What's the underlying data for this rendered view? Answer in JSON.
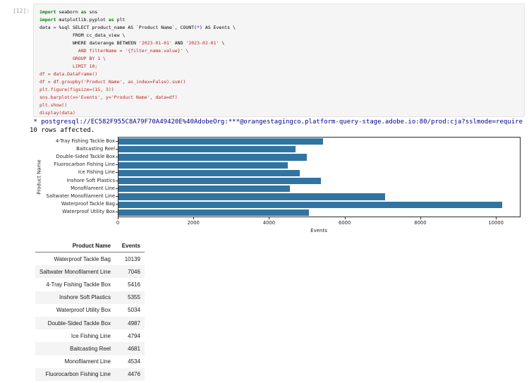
{
  "notebook": {
    "execution_count": "[12]:",
    "code_lines": [
      [
        {
          "t": "import",
          "c": "kw"
        },
        {
          "t": " seaborn ",
          "c": "pl"
        },
        {
          "t": "as",
          "c": "kw"
        },
        {
          "t": " sns",
          "c": "pl"
        }
      ],
      [
        {
          "t": "import",
          "c": "kw"
        },
        {
          "t": " matplotlib.pyplot ",
          "c": "pl"
        },
        {
          "t": "as",
          "c": "kw"
        },
        {
          "t": " plt",
          "c": "pl"
        }
      ],
      [
        {
          "t": "data ",
          "c": "pl"
        },
        {
          "t": "=",
          "c": "op"
        },
        {
          "t": " %sql SELECT product_name AS `Product Name`, COUNT(",
          "c": "pl"
        },
        {
          "t": "*",
          "c": "op"
        },
        {
          "t": ") AS Events \\",
          "c": "pl"
        }
      ],
      [
        {
          "t": "            FROM cc_data_view \\",
          "c": "pl"
        }
      ],
      [
        {
          "t": "            WHERE daterange BETWEEN ",
          "c": "pl"
        },
        {
          "t": "'2023-01-01'",
          "c": "str"
        },
        {
          "t": " AND ",
          "c": "pl"
        },
        {
          "t": "'2023-02-01'",
          "c": "str"
        },
        {
          "t": " \\",
          "c": "pl"
        }
      ],
      [
        {
          "t": "              AND filterName = '{filter_name.value}' \\",
          "c": "str"
        }
      ],
      [
        {
          "t": "            ",
          "c": "pl"
        },
        {
          "t": "GROUP BY 1 \\",
          "c": "str"
        }
      ],
      [
        {
          "t": "            ",
          "c": "pl"
        },
        {
          "t": "LIMIT 10;",
          "c": "str"
        }
      ],
      [
        {
          "t": "df = data.DataFrame()",
          "c": "str"
        }
      ],
      [
        {
          "t": "df = df.groupby('Product Name', as_index=False).sum()",
          "c": "str"
        }
      ],
      [
        {
          "t": "plt.figure(figsize=(15, 3))",
          "c": "str"
        }
      ],
      [
        {
          "t": "sns.barplot(x='Events', y='Product Name', data=df)",
          "c": "str"
        }
      ],
      [
        {
          "t": "plt.show()",
          "c": "str"
        }
      ],
      [
        {
          "t": "display(data)",
          "c": "str"
        }
      ]
    ],
    "outputs": {
      "connection": " * postgresql://EC582F955C8A79F70A49420E%40AdobeOrg:***@orangestagingco.platform-query-stage.adobe.io:80/prod:cja?sslmode=require",
      "rows_affected": "10 rows affected."
    }
  },
  "chart_data": {
    "type": "bar",
    "orientation": "horizontal",
    "title": "",
    "xlabel": "Events",
    "ylabel": "Product Name",
    "categories": [
      "4-Tray Fishing Tackle Box",
      "Baitcasting Reel",
      "Double-Sided Tackle Box",
      "Fluorocarbon Fishing Line",
      "Ice Fishing Line",
      "Inshore Soft Plastics",
      "Monofilament Line",
      "Saltwater Monofilament Line",
      "Waterproof Tackle Bag",
      "Waterproof Utility Box"
    ],
    "values": [
      5416,
      4681,
      4987,
      4476,
      4794,
      5355,
      4534,
      7046,
      10139,
      5034
    ],
    "xlim": [
      0,
      10613
    ],
    "xticks": [
      0,
      2000,
      4000,
      6000,
      8000,
      10000
    ],
    "grid": false,
    "legend": null,
    "bar_color": "#3274a1"
  },
  "table": {
    "columns": [
      "Product Name",
      "Events"
    ],
    "rows": [
      [
        "Waterproof Tackle Bag",
        "10139"
      ],
      [
        "Saltwater Monofilament Line",
        "7046"
      ],
      [
        "4-Tray Fishing Tackle Box",
        "5416"
      ],
      [
        "Inshore Soft Plastics",
        "5355"
      ],
      [
        "Waterproof Utility Box",
        "5034"
      ],
      [
        "Double-Sided Tackle Box",
        "4987"
      ],
      [
        "Ice Fishing Line",
        "4794"
      ],
      [
        "Baitcasting Reel",
        "4681"
      ],
      [
        "Monofilament Line",
        "4534"
      ],
      [
        "Fluorocarbon Fishing Line",
        "4476"
      ]
    ]
  },
  "colors": {
    "cell_background": "#f5f5f5",
    "keyword": "#008000",
    "operator": "#AA22FF",
    "string": "#BA2121",
    "connection_text": "#00008b",
    "bar": "#3274a1",
    "table_stripe": "#f4f4f4"
  }
}
